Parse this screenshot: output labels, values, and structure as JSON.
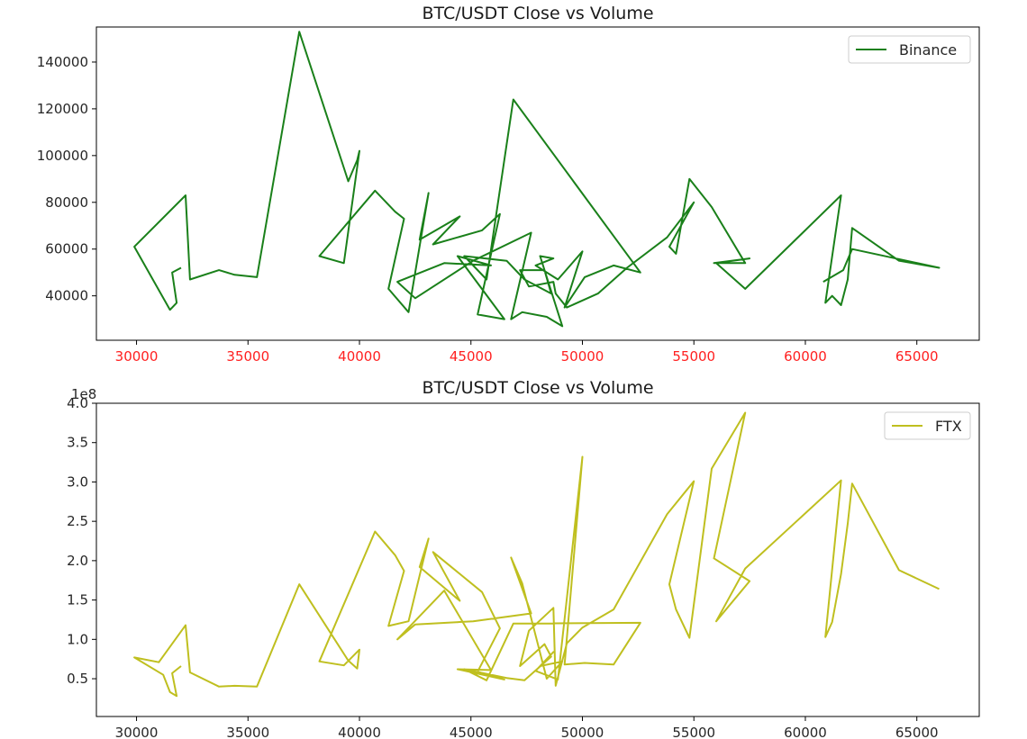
{
  "chart_data": [
    {
      "type": "line",
      "title": "BTC/USDT Close vs Volume",
      "xlabel": "",
      "ylabel": "",
      "xlim": [
        28200,
        67800
      ],
      "ylim": [
        21000,
        155000
      ],
      "x_ticks": [
        30000,
        35000,
        40000,
        45000,
        50000,
        55000,
        60000,
        65000
      ],
      "y_ticks": [
        40000,
        60000,
        80000,
        100000,
        120000,
        140000
      ],
      "tick_label_color_x": "#ff2020",
      "legend_position": "top-right",
      "series": [
        {
          "name": "Binance",
          "color": "#1a801a",
          "x": [
            32000,
            31600,
            31800,
            31500,
            29900,
            32200,
            32400,
            33700,
            34400,
            35400,
            37300,
            39500,
            39900,
            40000,
            39300,
            38200,
            40700,
            41600,
            42000,
            41300,
            42200,
            43100,
            42700,
            44500,
            43300,
            45500,
            46300,
            45300,
            46500,
            44400,
            45900,
            43800,
            41700,
            42500,
            45100,
            47700,
            46800,
            47300,
            48400,
            49100,
            48100,
            48700,
            47900,
            48900,
            50000,
            49200,
            50100,
            51400,
            52600,
            46900,
            45700,
            44700,
            46600,
            47400,
            48600,
            48300,
            47200,
            47600,
            48700,
            48800,
            49300,
            50700,
            52000,
            53800,
            55000,
            53900,
            54200,
            54800,
            55800,
            57300,
            55900,
            57500,
            56000,
            57300,
            61600,
            60900,
            61200,
            61600,
            61900,
            62100,
            64200,
            66000,
            62100,
            61700,
            60800
          ],
          "y": [
            52000,
            50000,
            37000,
            34000,
            61000,
            83000,
            47000,
            51000,
            49000,
            48000,
            153000,
            89000,
            98000,
            102000,
            54000,
            57000,
            85000,
            76000,
            73000,
            43000,
            33000,
            84000,
            64000,
            74000,
            62000,
            68000,
            75000,
            32000,
            30000,
            57000,
            53000,
            54000,
            46000,
            39000,
            55000,
            67000,
            30000,
            33000,
            31000,
            27000,
            57000,
            56000,
            53000,
            47000,
            59000,
            35000,
            48000,
            53000,
            50000,
            124000,
            47000,
            57000,
            55000,
            47000,
            41000,
            51000,
            51000,
            44000,
            46000,
            41000,
            35000,
            41000,
            52000,
            65000,
            80000,
            61000,
            58000,
            90000,
            78000,
            54000,
            54000,
            56000,
            54000,
            43000,
            83000,
            37000,
            40000,
            36000,
            47000,
            69000,
            55000,
            52000,
            60000,
            51000,
            46000
          ]
        }
      ]
    },
    {
      "type": "line",
      "title": "BTC/USDT Close vs Volume",
      "xlabel": "",
      "ylabel": "",
      "y_exponent_label": "1e8",
      "xlim": [
        28200,
        67800
      ],
      "ylim": [
        0.02,
        4.0
      ],
      "x_ticks": [
        30000,
        35000,
        40000,
        45000,
        50000,
        55000,
        60000,
        65000
      ],
      "y_ticks": [
        0.5,
        1.0,
        1.5,
        2.0,
        2.5,
        3.0,
        3.5,
        4.0
      ],
      "y_tick_labels": [
        "0.5",
        "1.0",
        "1.5",
        "2.0",
        "2.5",
        "3.0",
        "3.5",
        "4.0"
      ],
      "legend_position": "top-right",
      "series": [
        {
          "name": "FTX",
          "color": "#bfbf1f",
          "x": [
            32000,
            31600,
            31800,
            31500,
            31200,
            29900,
            31000,
            32200,
            32400,
            33700,
            34400,
            35400,
            37300,
            39500,
            39900,
            40000,
            39300,
            38200,
            40700,
            41600,
            42000,
            41300,
            42200,
            43100,
            42700,
            44500,
            43300,
            45500,
            46300,
            45300,
            46500,
            44400,
            45900,
            43800,
            41700,
            42500,
            45100,
            47700,
            46800,
            47300,
            48400,
            49100,
            48100,
            48700,
            47900,
            48900,
            50000,
            49200,
            50100,
            51400,
            52600,
            46900,
            45700,
            44700,
            46600,
            47400,
            48600,
            48300,
            47200,
            47600,
            48700,
            48800,
            49300,
            50000,
            51400,
            53800,
            55000,
            53900,
            54200,
            54800,
            55800,
            57300,
            55900,
            57500,
            56000,
            57300,
            61600,
            60900,
            61200,
            61600,
            61900,
            62100,
            64200,
            66000
          ],
          "y": [
            0.66,
            0.57,
            0.28,
            0.33,
            0.55,
            0.77,
            0.71,
            1.18,
            0.58,
            0.4,
            0.41,
            0.4,
            1.7,
            0.73,
            0.63,
            0.87,
            0.67,
            0.72,
            2.37,
            2.07,
            1.87,
            1.17,
            1.23,
            2.28,
            1.92,
            1.49,
            2.11,
            1.6,
            1.14,
            0.59,
            0.49,
            0.62,
            0.61,
            1.62,
            1.0,
            1.19,
            1.23,
            1.33,
            2.04,
            1.71,
            0.5,
            0.72,
            0.66,
            0.84,
            0.6,
            0.49,
            3.32,
            0.68,
            0.7,
            0.68,
            1.21,
            1.2,
            0.48,
            0.62,
            0.51,
            0.48,
            0.78,
            0.94,
            0.66,
            1.11,
            1.4,
            0.41,
            0.95,
            1.15,
            1.38,
            2.59,
            3.01,
            1.7,
            1.38,
            1.02,
            3.17,
            3.88,
            2.03,
            1.74,
            1.23,
            1.9,
            3.02,
            1.03,
            1.22,
            1.83,
            2.47,
            2.98,
            1.88,
            1.64
          ]
        }
      ]
    }
  ]
}
